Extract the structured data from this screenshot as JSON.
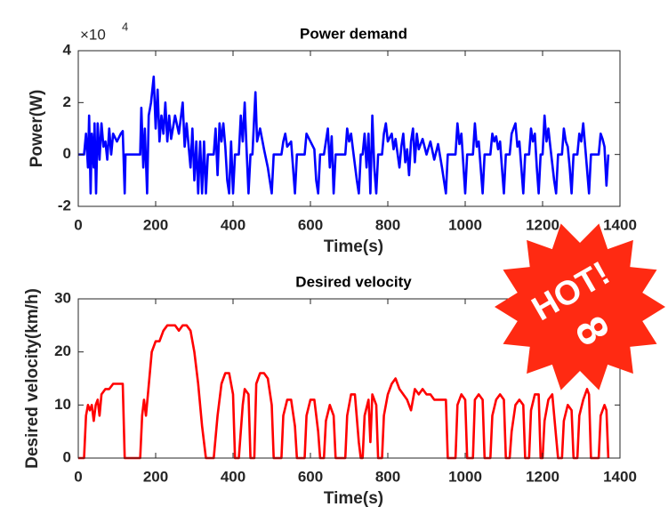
{
  "chart_data": [
    {
      "type": "line",
      "title": "Power demand",
      "xlabel": "Time(s)",
      "ylabel": "Power(W)",
      "y_multiplier": {
        "base": "×10",
        "exponent": "4"
      },
      "xlim": [
        0,
        1400
      ],
      "xticks": [
        0,
        200,
        400,
        600,
        800,
        1000,
        1200,
        1400
      ],
      "ylim": [
        -2,
        4
      ],
      "yticks": [
        -2,
        0,
        2,
        4
      ],
      "x": [
        0,
        15,
        20,
        25,
        28,
        32,
        35,
        40,
        42,
        46,
        50,
        55,
        60,
        65,
        70,
        75,
        80,
        85,
        90,
        100,
        110,
        115,
        120,
        122,
        160,
        163,
        168,
        172,
        178,
        182,
        188,
        195,
        200,
        205,
        210,
        215,
        220,
        225,
        230,
        235,
        240,
        250,
        260,
        270,
        275,
        280,
        290,
        295,
        300,
        305,
        310,
        315,
        320,
        325,
        330,
        335,
        350,
        355,
        360,
        365,
        370,
        375,
        380,
        385,
        390,
        395,
        400,
        405,
        415,
        420,
        425,
        430,
        435,
        440,
        445,
        450,
        455,
        458,
        462,
        470,
        480,
        490,
        500,
        505,
        525,
        530,
        535,
        540,
        550,
        560,
        565,
        585,
        590,
        600,
        610,
        615,
        620,
        625,
        635,
        640,
        645,
        650,
        655,
        660,
        665,
        690,
        695,
        700,
        705,
        710,
        720,
        725,
        730,
        735,
        740,
        745,
        750,
        755,
        760,
        765,
        770,
        775,
        785,
        790,
        795,
        800,
        810,
        815,
        820,
        830,
        835,
        840,
        845,
        850,
        855,
        860,
        865,
        870,
        875,
        880,
        890,
        900,
        910,
        920,
        930,
        940,
        950,
        955,
        975,
        980,
        985,
        990,
        1000,
        1005,
        1020,
        1025,
        1030,
        1035,
        1040,
        1045,
        1050,
        1065,
        1070,
        1075,
        1080,
        1085,
        1090,
        1095,
        1100,
        1105,
        1115,
        1120,
        1130,
        1135,
        1140,
        1145,
        1150,
        1155,
        1165,
        1170,
        1175,
        1180,
        1185,
        1190,
        1195,
        1200,
        1205,
        1210,
        1215,
        1220,
        1230,
        1235,
        1240,
        1250,
        1255,
        1260,
        1265,
        1270,
        1275,
        1280,
        1290,
        1295,
        1300,
        1305,
        1310,
        1320,
        1325,
        1345,
        1350,
        1355,
        1360,
        1365,
        1370
      ],
      "series": [
        {
          "color": "#0000ff",
          "values": [
            0,
            0,
            0.8,
            -0.5,
            1.5,
            -1.5,
            0.8,
            -0.5,
            1.2,
            -1.5,
            1.2,
            -0.2,
            1.2,
            0.3,
            0.5,
            -0.2,
            1.0,
            0,
            0.8,
            0.5,
            0.8,
            0.9,
            -1.5,
            0,
            0,
            1.8,
            -0.5,
            1.0,
            -1.5,
            1.5,
            2.0,
            3.0,
            1.0,
            2.5,
            0.5,
            1.5,
            0.8,
            2.0,
            0.5,
            1.5,
            0.6,
            1.5,
            0.8,
            2.0,
            0.3,
            1.2,
            -0.5,
            1.0,
            -1.0,
            0.5,
            -1.5,
            0.5,
            -1.5,
            0.5,
            -1.5,
            0,
            0,
            1.0,
            -0.8,
            1.2,
            0.5,
            1.2,
            0.3,
            -1.0,
            -1.5,
            0.5,
            -1.5,
            0,
            0,
            1.5,
            0.5,
            2.0,
            0.2,
            -1.5,
            0,
            0,
            1.5,
            2.4,
            0.5,
            1.0,
            0.2,
            -0.5,
            -1.5,
            0,
            0,
            0.5,
            0.8,
            0.3,
            0.5,
            -1.5,
            0,
            0,
            0.8,
            0.5,
            0.2,
            -1.0,
            -1.5,
            0,
            0,
            0.5,
            1.0,
            -0.5,
            0.7,
            -1.5,
            0,
            0,
            1.0,
            0.5,
            0.8,
            0.2,
            -1.0,
            -1.5,
            0,
            0,
            0.8,
            -0.5,
            0.8,
            -1.5,
            1.5,
            -0.5,
            -1.5,
            0,
            0,
            0.8,
            1.2,
            0.5,
            0.8,
            0.2,
            0.6,
            -0.5,
            0.3,
            0.8,
            -0.3,
            0.2,
            -0.8,
            0.5,
            1.0,
            -0.3,
            0.8,
            0.2,
            0.6,
            0,
            0.5,
            -0.2,
            0.4,
            -0.5,
            -1.5,
            0,
            0,
            1.2,
            0.4,
            0.8,
            -1.5,
            0,
            0,
            1.2,
            0.3,
            0.5,
            -0.5,
            -1.5,
            0,
            0,
            0.8,
            0.5,
            0.7,
            0.2,
            0.5,
            -0.5,
            -1.5,
            0,
            0,
            0.8,
            1.2,
            0.3,
            0.5,
            -0.5,
            -1.5,
            0,
            0,
            1.0,
            0.5,
            0.8,
            -0.5,
            -1.5,
            0,
            0,
            1.5,
            0.5,
            1.0,
            0.3,
            -1.0,
            -1.5,
            0,
            0,
            1.0,
            0.5,
            0.3,
            -0.5,
            -1.5,
            0,
            0,
            0.8,
            0.5,
            1.2,
            0.3,
            -1.5,
            0,
            0,
            0.8,
            0.6,
            0.3,
            -1.2,
            0
          ]
        }
      ]
    },
    {
      "type": "line",
      "title": "Desired velocity",
      "xlabel": "Time(s)",
      "ylabel": "Desired velocity(km/h)",
      "xlim": [
        0,
        1400
      ],
      "xticks": [
        0,
        200,
        400,
        600,
        800,
        1000,
        1200,
        1400
      ],
      "ylim": [
        0,
        30
      ],
      "yticks": [
        0,
        10,
        20,
        30
      ],
      "x": [
        0,
        15,
        20,
        25,
        30,
        35,
        40,
        45,
        50,
        55,
        60,
        70,
        80,
        90,
        100,
        110,
        115,
        120,
        130,
        160,
        165,
        170,
        175,
        180,
        190,
        200,
        210,
        220,
        230,
        240,
        250,
        260,
        270,
        280,
        290,
        300,
        310,
        320,
        330,
        350,
        360,
        370,
        380,
        390,
        400,
        405,
        415,
        425,
        430,
        440,
        445,
        455,
        460,
        470,
        480,
        490,
        500,
        505,
        525,
        530,
        540,
        550,
        560,
        565,
        585,
        590,
        600,
        610,
        620,
        625,
        635,
        640,
        650,
        660,
        665,
        690,
        695,
        705,
        715,
        725,
        730,
        735,
        740,
        750,
        755,
        760,
        770,
        775,
        785,
        790,
        800,
        810,
        820,
        830,
        840,
        850,
        860,
        870,
        880,
        890,
        900,
        910,
        920,
        930,
        940,
        950,
        955,
        975,
        980,
        990,
        1000,
        1005,
        1020,
        1025,
        1035,
        1045,
        1050,
        1065,
        1070,
        1080,
        1090,
        1100,
        1105,
        1115,
        1120,
        1130,
        1140,
        1150,
        1155,
        1165,
        1170,
        1180,
        1190,
        1195,
        1200,
        1205,
        1215,
        1225,
        1235,
        1240,
        1250,
        1255,
        1265,
        1275,
        1280,
        1290,
        1295,
        1305,
        1315,
        1320,
        1325,
        1345,
        1350,
        1360,
        1365,
        1370
      ],
      "series": [
        {
          "color": "#ff0000",
          "values": [
            0,
            0,
            8,
            10,
            9,
            10,
            7,
            10,
            11,
            8,
            12,
            13,
            13,
            14,
            14,
            14,
            14,
            0,
            0,
            0,
            8,
            11,
            8,
            12,
            20,
            22,
            22,
            24,
            25,
            25,
            25,
            24,
            25,
            25,
            24,
            20,
            14,
            6,
            0,
            0,
            8,
            14,
            16,
            16,
            12,
            0,
            0,
            10,
            13,
            12,
            0,
            0,
            14,
            16,
            16,
            15,
            10,
            0,
            0,
            8,
            11,
            11,
            6,
            0,
            0,
            8,
            11,
            11,
            5,
            0,
            0,
            7,
            10,
            8,
            0,
            0,
            8,
            12,
            12,
            3,
            0,
            0,
            8,
            11,
            3,
            12,
            10,
            0,
            0,
            8,
            12,
            14,
            15,
            13,
            12,
            11,
            9,
            13,
            12,
            13,
            12,
            12,
            11,
            11,
            11,
            11,
            0,
            0,
            10,
            12,
            11,
            0,
            0,
            11,
            12,
            11,
            0,
            0,
            8,
            11,
            12,
            11,
            0,
            0,
            5,
            10,
            11,
            10,
            0,
            0,
            9,
            12,
            12,
            0,
            0,
            7,
            11,
            12,
            4,
            0,
            0,
            7,
            10,
            9,
            0,
            0,
            8,
            11,
            13,
            12,
            0,
            0,
            8,
            10,
            9,
            0
          ]
        }
      ]
    }
  ],
  "badge": {
    "text": "HOT!",
    "number": "8"
  }
}
